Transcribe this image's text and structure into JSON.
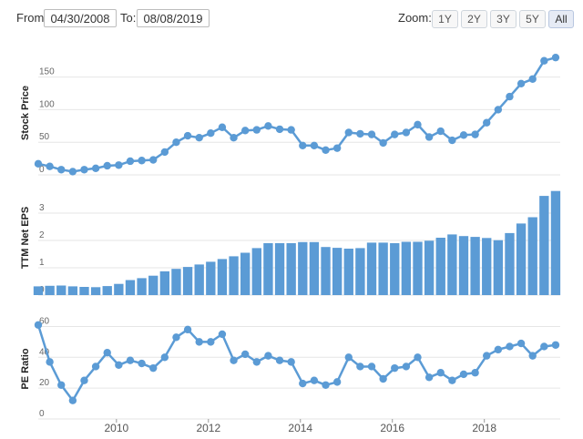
{
  "controls": {
    "from_label": "From:",
    "from_value": "04/30/2008",
    "to_label": "To:",
    "to_value": "08/08/2019",
    "zoom_label": "Zoom:",
    "zoom_buttons": [
      "1Y",
      "2Y",
      "3Y",
      "5Y",
      "All"
    ],
    "zoom_active": "All"
  },
  "colors": {
    "series": "#5b9bd5",
    "grid": "#e6e6e6"
  },
  "chart_data": [
    {
      "type": "line",
      "ylabel": "Stock Price",
      "ylim": [
        0,
        190
      ],
      "yticks": [
        0,
        50,
        100,
        150
      ],
      "x": [
        2008.3,
        2008.55,
        2008.8,
        2009.05,
        2009.3,
        2009.55,
        2009.8,
        2010.05,
        2010.3,
        2010.55,
        2010.8,
        2011.05,
        2011.3,
        2011.55,
        2011.8,
        2012.05,
        2012.3,
        2012.55,
        2012.8,
        2013.05,
        2013.3,
        2013.55,
        2013.8,
        2014.05,
        2014.3,
        2014.55,
        2014.8,
        2015.05,
        2015.3,
        2015.55,
        2015.8,
        2016.05,
        2016.3,
        2016.55,
        2016.8,
        2017.05,
        2017.3,
        2017.55,
        2017.8,
        2018.05,
        2018.3,
        2018.55,
        2018.8,
        2019.05,
        2019.3,
        2019.55
      ],
      "values": [
        17,
        13,
        8,
        5,
        8,
        10,
        14,
        15,
        21,
        22,
        23,
        35,
        50,
        60,
        57,
        64,
        73,
        57,
        68,
        69,
        75,
        70,
        69,
        45,
        45,
        38,
        41,
        65,
        63,
        62,
        49,
        62,
        65,
        77,
        58,
        67,
        53,
        61,
        62,
        80,
        100,
        120,
        140,
        147,
        175,
        180
      ]
    },
    {
      "type": "bar",
      "ylabel": "TTM Net EPS",
      "ylim": [
        0,
        4.2
      ],
      "yticks": [
        0,
        1,
        2,
        3
      ],
      "x": [
        2008.3,
        2008.55,
        2008.8,
        2009.05,
        2009.3,
        2009.55,
        2009.8,
        2010.05,
        2010.3,
        2010.55,
        2010.8,
        2011.05,
        2011.3,
        2011.55,
        2011.8,
        2012.05,
        2012.3,
        2012.55,
        2012.8,
        2013.05,
        2013.3,
        2013.55,
        2013.8,
        2014.05,
        2014.3,
        2014.55,
        2014.8,
        2015.05,
        2015.3,
        2015.55,
        2015.8,
        2016.05,
        2016.3,
        2016.55,
        2016.8,
        2017.05,
        2017.3,
        2017.55,
        2017.8,
        2018.05,
        2018.3,
        2018.55,
        2018.8,
        2019.05,
        2019.3,
        2019.55
      ],
      "values": [
        0.32,
        0.34,
        0.35,
        0.32,
        0.3,
        0.29,
        0.33,
        0.41,
        0.55,
        0.62,
        0.71,
        0.87,
        0.96,
        1.03,
        1.12,
        1.22,
        1.32,
        1.42,
        1.55,
        1.72,
        1.9,
        1.9,
        1.9,
        1.94,
        1.94,
        1.76,
        1.73,
        1.7,
        1.72,
        1.92,
        1.92,
        1.9,
        1.95,
        1.95,
        1.99,
        2.1,
        2.22,
        2.16,
        2.13,
        2.09,
        2.01,
        2.27,
        2.62,
        2.85,
        3.63,
        3.81
      ]
    },
    {
      "type": "line",
      "ylabel": "PE Ratio",
      "ylim": [
        0,
        65
      ],
      "yticks": [
        0,
        20,
        40,
        60
      ],
      "x": [
        2008.3,
        2008.55,
        2008.8,
        2009.05,
        2009.3,
        2009.55,
        2009.8,
        2010.05,
        2010.3,
        2010.55,
        2010.8,
        2011.05,
        2011.3,
        2011.55,
        2011.8,
        2012.05,
        2012.3,
        2012.55,
        2012.8,
        2013.05,
        2013.3,
        2013.55,
        2013.8,
        2014.05,
        2014.3,
        2014.55,
        2014.8,
        2015.05,
        2015.3,
        2015.55,
        2015.8,
        2016.05,
        2016.3,
        2016.55,
        2016.8,
        2017.05,
        2017.3,
        2017.55,
        2017.8,
        2018.05,
        2018.3,
        2018.55,
        2018.8,
        2019.05,
        2019.3,
        2019.55
      ],
      "values": [
        61,
        37,
        22,
        12,
        25,
        34,
        43,
        35,
        38,
        36,
        33,
        40,
        53,
        58,
        50,
        50,
        55,
        38,
        42,
        37,
        41,
        38,
        37,
        23,
        25,
        22,
        24,
        40,
        34,
        34,
        26,
        33,
        34,
        40,
        27,
        30,
        25,
        29,
        30,
        41,
        45,
        47,
        49,
        41,
        47,
        48
      ]
    }
  ],
  "x_axis": {
    "ticks": [
      2010,
      2012,
      2014,
      2016,
      2018
    ]
  }
}
